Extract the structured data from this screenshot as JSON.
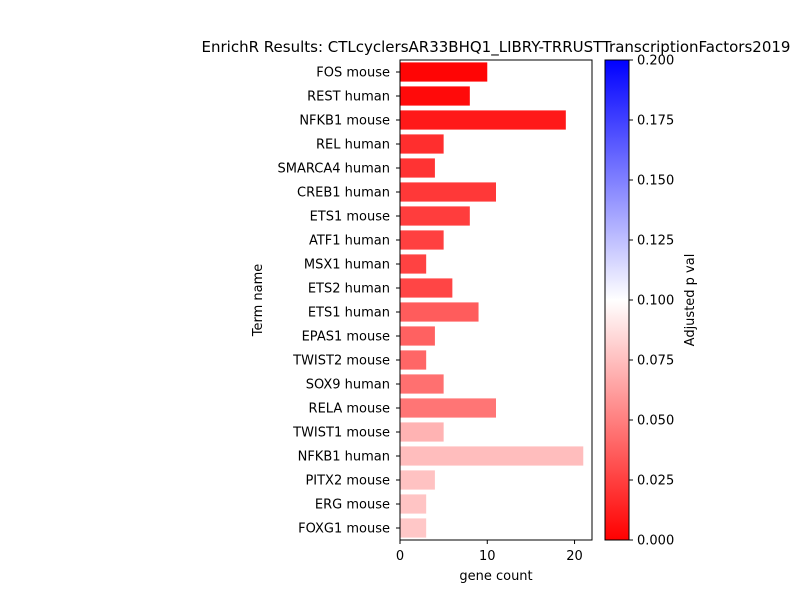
{
  "chart_data": {
    "type": "bar",
    "orientation": "horizontal",
    "title": "EnrichR Results: CTLcyclersAR33BHQ1_LIBRY-TRRUSTTranscriptionFactors2019",
    "xlabel": "gene count",
    "ylabel": "Term name",
    "xlim": [
      0,
      22
    ],
    "xticks": [
      0,
      10,
      20
    ],
    "categories": [
      "FOS mouse",
      "REST human",
      "NFKB1 mouse",
      "REL human",
      "SMARCA4 human",
      "CREB1 human",
      "ETS1 mouse",
      "ATF1 human",
      "MSX1 human",
      "ETS2 human",
      "ETS1 human",
      "EPAS1 mouse",
      "TWIST2 mouse",
      "SOX9 human",
      "RELA mouse",
      "TWIST1 mouse",
      "NFKB1 human",
      "PITX2 mouse",
      "ERG mouse",
      "FOXG1 mouse"
    ],
    "values": [
      10,
      8,
      19,
      5,
      4,
      11,
      8,
      5,
      3,
      6,
      9,
      4,
      3,
      5,
      11,
      5,
      21,
      4,
      3,
      3
    ],
    "adjusted_p_values": [
      0.002,
      0.004,
      0.01,
      0.018,
      0.02,
      0.022,
      0.024,
      0.025,
      0.026,
      0.027,
      0.036,
      0.038,
      0.04,
      0.044,
      0.046,
      0.07,
      0.074,
      0.076,
      0.077,
      0.078
    ],
    "colorbar": {
      "label": "Adjusted p val",
      "range": [
        0,
        0.2
      ],
      "ticks": [
        "0.000",
        "0.025",
        "0.050",
        "0.075",
        "0.100",
        "0.125",
        "0.150",
        "0.175",
        "0.200"
      ],
      "colormap": [
        "#ff0000",
        "#ffffff",
        "#0000ff"
      ]
    },
    "grid": false,
    "legend": "colorbar-right"
  }
}
